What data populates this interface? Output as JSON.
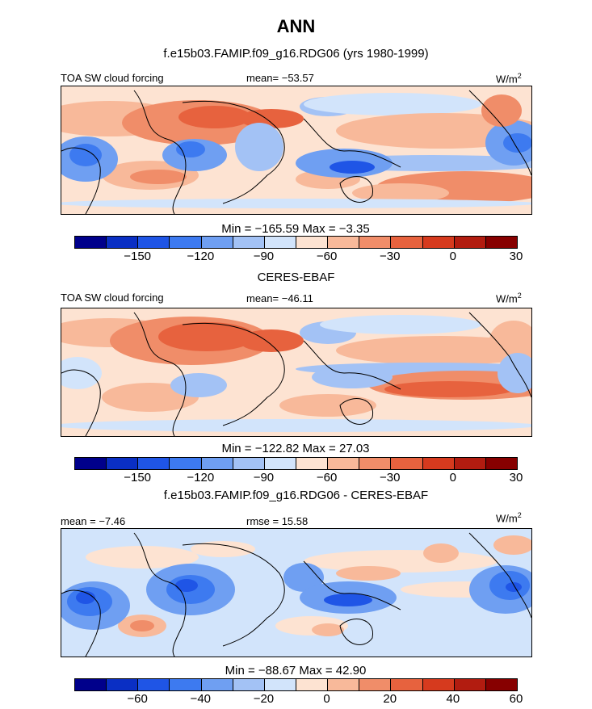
{
  "title": "ANN",
  "palette": [
    "#00008b",
    "#0a2fc4",
    "#1f55e6",
    "#3d7af0",
    "#6f9ff2",
    "#a3c2f5",
    "#d2e4fb",
    "#fde3d2",
    "#f8b99a",
    "#f08d69",
    "#e7623e",
    "#d63a1e",
    "#b21c10",
    "#870000"
  ],
  "land_color": "#3b6bea",
  "panels": [
    {
      "subtitle": "f.e15b03.FAMIP.f09_g16.RDG06 (yrs 1980-1999)",
      "left_label": "TOA SW cloud forcing",
      "center_label": "mean= −53.57",
      "units": "W/m",
      "units_sup": "2",
      "stats": "Min = −165.59 Max =  −3.35",
      "ticks": [
        "−150",
        "−120",
        "−90",
        "−60",
        "−30",
        "0",
        "30"
      ]
    },
    {
      "subtitle": "CERES-EBAF",
      "left_label": "TOA SW cloud forcing",
      "center_label": "mean= −46.11",
      "units": "W/m",
      "units_sup": "2",
      "stats": "Min = −122.82 Max =  27.03",
      "ticks": [
        "−150",
        "−120",
        "−90",
        "−60",
        "−30",
        "0",
        "30"
      ]
    },
    {
      "subtitle": "f.e15b03.FAMIP.f09_g16.RDG06 - CERES-EBAF",
      "left_label": "mean = −7.46",
      "center_label": "rmse =  15.58",
      "units": "W/m",
      "units_sup": "2",
      "stats": "Min = −88.67 Max =  42.90",
      "ticks": [
        "−60",
        "−40",
        "−20",
        "0",
        "20",
        "40",
        "60"
      ]
    }
  ]
}
